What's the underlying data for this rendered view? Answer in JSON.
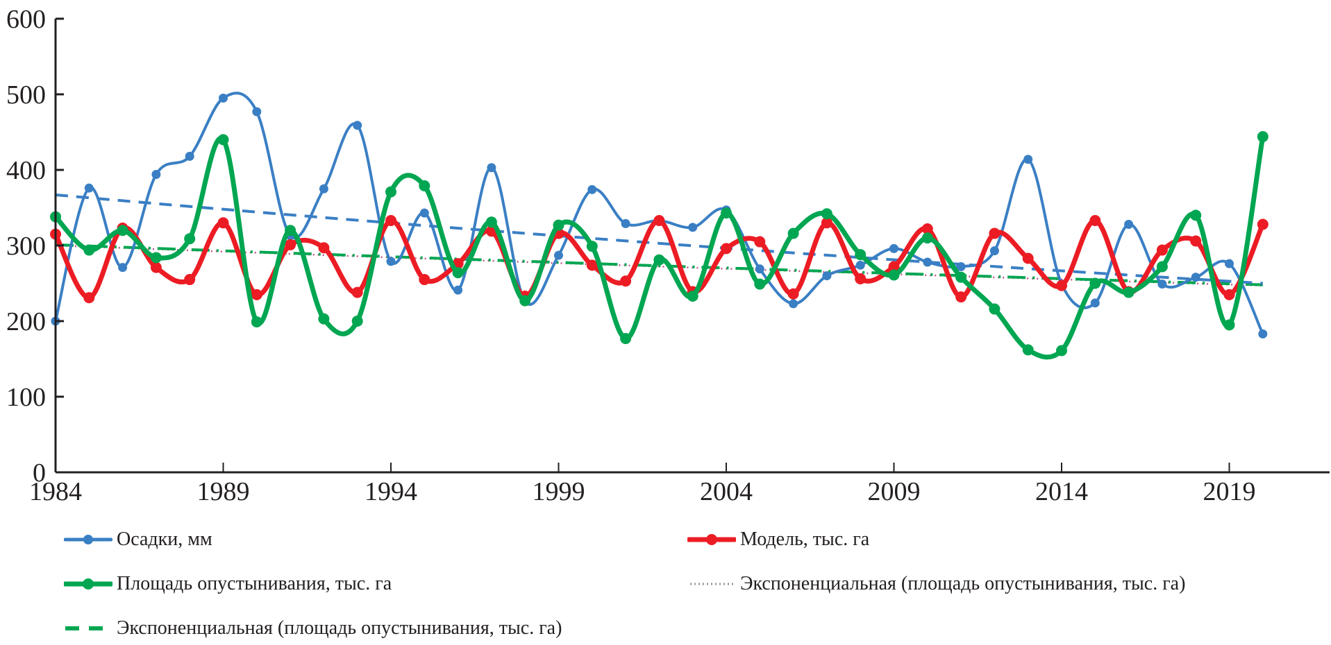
{
  "chart_data": {
    "type": "line",
    "title": "",
    "xlabel": "",
    "ylabel": "",
    "xlim": [
      1984,
      2022
    ],
    "ylim": [
      0,
      600
    ],
    "grid": false,
    "legend_position": "bottom",
    "x_ticks": [
      "1984",
      "1989",
      "1994",
      "1999",
      "2004",
      "2009",
      "2014",
      "2019"
    ],
    "y_ticks": [
      "0",
      "100",
      "200",
      "300",
      "400",
      "500",
      "600"
    ],
    "x": [
      1984,
      1985,
      1986,
      1987,
      1988,
      1989,
      1990,
      1991,
      1992,
      1993,
      1994,
      1995,
      1996,
      1997,
      1998,
      1999,
      2000,
      2001,
      2002,
      2003,
      2004,
      2005,
      2006,
      2007,
      2008,
      2009,
      2010,
      2011,
      2012,
      2013,
      2014,
      2015,
      2016,
      2017,
      2018,
      2019,
      2020
    ],
    "series": [
      {
        "name": "Осадки, мм",
        "color": "#3a7fc4",
        "style": "solid-markers",
        "values": [
          200,
          376,
          271,
          394,
          418,
          495,
          477,
          313,
          375,
          459,
          279,
          343,
          241,
          403,
          226,
          287,
          374,
          329,
          333,
          324,
          347,
          269,
          223,
          260,
          274,
          296,
          278,
          272,
          293,
          414,
          249,
          224,
          328,
          249,
          258,
          276,
          183
        ]
      },
      {
        "name": "Модель, тыс. га",
        "color": "#ec1c24",
        "style": "solid-markers",
        "values": [
          315,
          231,
          323,
          271,
          255,
          330,
          235,
          301,
          297,
          238,
          333,
          255,
          276,
          319,
          233,
          316,
          274,
          253,
          333,
          239,
          296,
          305,
          236,
          330,
          256,
          272,
          322,
          232,
          316,
          283,
          247,
          333,
          239,
          294,
          306,
          235,
          328
        ]
      },
      {
        "name": "Площадь опустынивания, тыс. га",
        "color": "#00a651",
        "style": "solid-markers",
        "values": [
          338,
          294,
          320,
          284,
          309,
          440,
          199,
          320,
          203,
          200,
          371,
          379,
          264,
          331,
          227,
          327,
          299,
          177,
          281,
          233,
          343,
          249,
          316,
          342,
          288,
          261,
          310,
          258,
          216,
          162,
          161,
          250,
          238,
          272,
          340,
          195,
          444
        ]
      },
      {
        "name": "Экспоненциальная (площадь опустынивания, тыс. га)",
        "color": "#c0558a",
        "style": "dotted",
        "trend": [
          300,
          247
        ]
      },
      {
        "name": "Экспоненциальная (площадь опустынивания, тыс. га)",
        "color": "#00a651",
        "style": "dashed",
        "trend": [
          301,
          248
        ]
      },
      {
        "name": "Осадки trend",
        "color": "#3a7fc4",
        "style": "dashed",
        "trend": [
          367,
          250
        ],
        "in_legend": false
      }
    ]
  },
  "legend": [
    {
      "label": "Осадки, мм",
      "kind": "blue-line-marker"
    },
    {
      "label": "Модель, тыс. га",
      "kind": "red-line-marker"
    },
    {
      "label": "Площадь опустынивания, тыс. га",
      "kind": "green-line-marker"
    },
    {
      "label": "Экспоненциальная (площадь опустынивания, тыс. га)",
      "kind": "dotted"
    },
    {
      "label": "Экспоненциальная (площадь опустынивания, тыс. га)",
      "kind": "green-dashed"
    }
  ]
}
